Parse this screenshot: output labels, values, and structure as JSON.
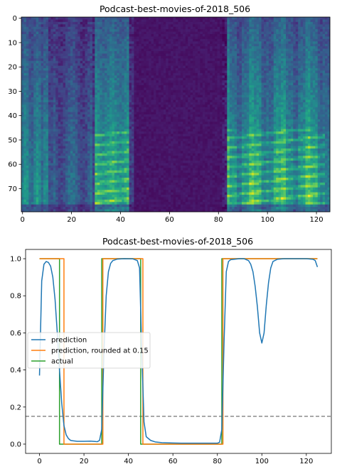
{
  "chart_data": [
    {
      "type": "heatmap",
      "title": "Podcast-best-movies-of-2018_506",
      "colormap": "viridis",
      "x_ticks": [
        "0",
        "20",
        "40",
        "60",
        "80",
        "100",
        "120"
      ],
      "y_ticks": [
        "0",
        "10",
        "20",
        "30",
        "40",
        "50",
        "60",
        "70"
      ],
      "xlim": [
        -0.5,
        125.5
      ],
      "ylim": [
        79.5,
        -0.5
      ],
      "n_frames": 126,
      "n_bins": 80
    },
    {
      "type": "line",
      "title": "Podcast-best-movies-of-2018_506",
      "x_ticks": [
        "0",
        "20",
        "40",
        "60",
        "80",
        "100",
        "120"
      ],
      "y_ticks": [
        "0.0",
        "0.2",
        "0.4",
        "0.6",
        "0.8",
        "1.0"
      ],
      "xlim": [
        -6.25,
        131.25
      ],
      "ylim": [
        -0.05,
        1.05
      ],
      "legend": "center-left",
      "threshold": 0.15,
      "series": [
        {
          "name": "prediction",
          "color": "#1f77b4",
          "points": [
            [
              0,
              0.37
            ],
            [
              1,
              0.88
            ],
            [
              2,
              0.97
            ],
            [
              3,
              0.985
            ],
            [
              4,
              0.98
            ],
            [
              5,
              0.96
            ],
            [
              6,
              0.9
            ],
            [
              7,
              0.78
            ],
            [
              8,
              0.6
            ],
            [
              9,
              0.4
            ],
            [
              10,
              0.22
            ],
            [
              11,
              0.1
            ],
            [
              12,
              0.05
            ],
            [
              13,
              0.03
            ],
            [
              14,
              0.02
            ],
            [
              15,
              0.018
            ],
            [
              17,
              0.015
            ],
            [
              20,
              0.015
            ],
            [
              23,
              0.016
            ],
            [
              25,
              0.014
            ],
            [
              26,
              0.013
            ],
            [
              27,
              0.02
            ],
            [
              28,
              0.08
            ],
            [
              29,
              0.5
            ],
            [
              30,
              0.8
            ],
            [
              31,
              0.93
            ],
            [
              32,
              0.975
            ],
            [
              33,
              0.99
            ],
            [
              35,
              0.998
            ],
            [
              38,
              1.0
            ],
            [
              42,
              0.999
            ],
            [
              44,
              0.99
            ],
            [
              45,
              0.95
            ],
            [
              46,
              0.5
            ],
            [
              47,
              0.12
            ],
            [
              48,
              0.04
            ],
            [
              50,
              0.02
            ],
            [
              52,
              0.012
            ],
            [
              55,
              0.008
            ],
            [
              60,
              0.006
            ],
            [
              65,
              0.005
            ],
            [
              70,
              0.005
            ],
            [
              75,
              0.005
            ],
            [
              80,
              0.005
            ],
            [
              81,
              0.01
            ],
            [
              82,
              0.08
            ],
            [
              83,
              0.55
            ],
            [
              84,
              0.93
            ],
            [
              85,
              0.985
            ],
            [
              86,
              0.995
            ],
            [
              90,
              1.0
            ],
            [
              92,
              1.0
            ],
            [
              94,
              0.99
            ],
            [
              95,
              0.97
            ],
            [
              96,
              0.93
            ],
            [
              97,
              0.85
            ],
            [
              98,
              0.74
            ],
            [
              99,
              0.6
            ],
            [
              100,
              0.545
            ],
            [
              101,
              0.6
            ],
            [
              102,
              0.75
            ],
            [
              103,
              0.87
            ],
            [
              104,
              0.95
            ],
            [
              105,
              0.985
            ],
            [
              107,
              0.997
            ],
            [
              110,
              1.0
            ],
            [
              115,
              1.0
            ],
            [
              120,
              1.0
            ],
            [
              123,
              0.997
            ],
            [
              124,
              0.99
            ],
            [
              125,
              0.955
            ]
          ]
        },
        {
          "name": "prediction, rounded at 0.15",
          "color": "#ff7f0e",
          "points": [
            [
              0,
              1
            ],
            [
              11,
              1
            ],
            [
              11,
              0
            ],
            [
              28.5,
              0
            ],
            [
              28.5,
              1
            ],
            [
              46.5,
              1
            ],
            [
              46.5,
              0
            ],
            [
              82.5,
              0
            ],
            [
              82.5,
              1
            ],
            [
              125,
              1
            ]
          ]
        },
        {
          "name": "actual",
          "color": "#2ca02c",
          "points": [
            [
              0,
              1
            ],
            [
              9,
              1
            ],
            [
              9,
              0
            ],
            [
              28,
              0
            ],
            [
              28,
              1
            ],
            [
              45.5,
              1
            ],
            [
              45.5,
              0
            ],
            [
              82,
              0
            ],
            [
              82,
              1
            ],
            [
              125,
              1
            ]
          ]
        }
      ]
    }
  ]
}
